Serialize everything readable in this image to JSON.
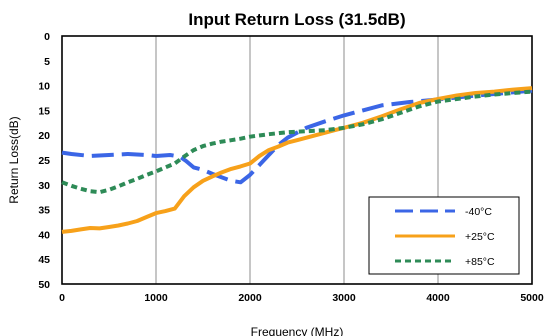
{
  "chart_data": {
    "type": "line",
    "title": "Input Return Loss (31.5dB)",
    "xlabel": "Frequency (MHz)",
    "ylabel": "Return Loss(dB)",
    "xlim": [
      0,
      5000
    ],
    "ylim": [
      0,
      50
    ],
    "y_inverted": true,
    "x_ticks": [
      0,
      1000,
      2000,
      3000,
      4000,
      5000
    ],
    "y_ticks": [
      0,
      5,
      10,
      15,
      20,
      25,
      30,
      35,
      40,
      45,
      50
    ],
    "grid": "vertical",
    "legend_position": "bottom-right",
    "series": [
      {
        "name": "-40°C",
        "color": "#3b66e6",
        "dash": "long-dash",
        "x": [
          0,
          100,
          300,
          500,
          700,
          900,
          1000,
          1150,
          1250,
          1320,
          1400,
          1500,
          1600,
          1700,
          1800,
          1900,
          2000,
          2100,
          2200,
          2300,
          2400,
          2500,
          2600,
          2800,
          3000,
          3200,
          3400,
          3700,
          4000,
          4300,
          4600,
          5000
        ],
        "y": [
          23.5,
          23.8,
          24.2,
          24,
          23.8,
          24,
          24.2,
          24,
          24.3,
          25.2,
          26.5,
          27,
          27.8,
          28.5,
          29.2,
          29.5,
          28,
          26,
          24,
          22,
          20.5,
          19.5,
          18.5,
          17.2,
          16,
          15,
          14,
          13.3,
          12.8,
          12.2,
          11.7,
          11
        ]
      },
      {
        "name": "+25°C",
        "color": "#f7a11a",
        "dash": "solid",
        "x": [
          0,
          100,
          200,
          300,
          400,
          500,
          600,
          700,
          800,
          900,
          1000,
          1100,
          1200,
          1300,
          1400,
          1500,
          1600,
          1700,
          1800,
          1900,
          2000,
          2100,
          2200,
          2300,
          2400,
          2500,
          2600,
          2700,
          2800,
          2900,
          3000,
          3200,
          3400,
          3600,
          3800,
          4000,
          4200,
          4400,
          4600,
          4800,
          5000
        ],
        "y": [
          39.5,
          39.3,
          39,
          38.7,
          38.8,
          38.5,
          38.2,
          37.8,
          37.3,
          36.5,
          35.7,
          35.3,
          34.8,
          32.3,
          30.5,
          29.2,
          28.3,
          27.5,
          26.8,
          26.3,
          25.7,
          24.2,
          23,
          22.3,
          21.5,
          21,
          20.5,
          20,
          19.5,
          19,
          18.5,
          17.5,
          16.2,
          14.8,
          13.5,
          12.7,
          12,
          11.5,
          11.2,
          10.8,
          10.5
        ]
      },
      {
        "name": "+85°C",
        "color": "#2e8b57",
        "dash": "short-dash",
        "x": [
          0,
          100,
          200,
          300,
          400,
          500,
          600,
          700,
          800,
          900,
          1000,
          1100,
          1200,
          1300,
          1400,
          1500,
          1600,
          1700,
          1800,
          1900,
          2000,
          2200,
          2400,
          2600,
          2800,
          3000,
          3200,
          3400,
          3600,
          3800,
          4000,
          4200,
          4400,
          4600,
          4800,
          5000
        ],
        "y": [
          29.5,
          30.2,
          30.8,
          31.3,
          31.5,
          31,
          30.3,
          29.5,
          28.8,
          28,
          27.3,
          26.5,
          25.7,
          24.3,
          23,
          22.2,
          21.7,
          21.3,
          21,
          20.7,
          20.3,
          19.8,
          19.4,
          19.2,
          19,
          18.5,
          17.8,
          16.8,
          15.5,
          14.2,
          13.2,
          12.7,
          12.2,
          11.8,
          11.5,
          11.2
        ]
      }
    ]
  }
}
